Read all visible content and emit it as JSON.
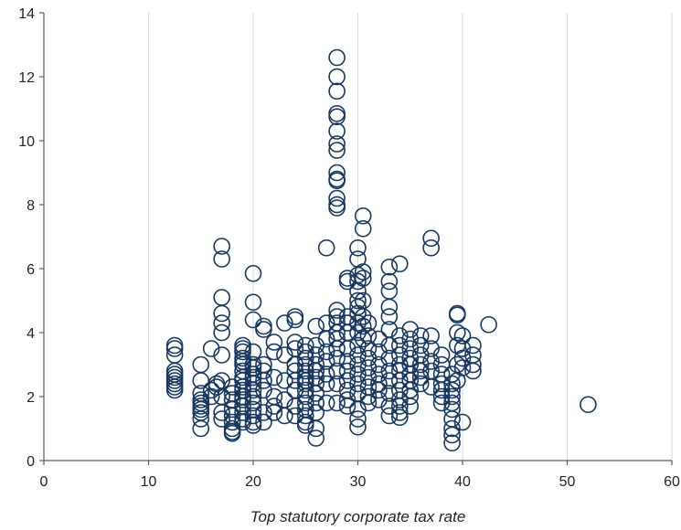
{
  "chart_data": {
    "type": "scatter",
    "title": "",
    "xlabel": "Top statutory corporate tax rate",
    "ylabel": "",
    "xlim": [
      0,
      60
    ],
    "ylim": [
      0,
      14
    ],
    "xticks": [
      0,
      10,
      20,
      30,
      40,
      50,
      60
    ],
    "yticks": [
      0,
      2,
      4,
      6,
      8,
      10,
      12,
      14
    ],
    "grid": {
      "vertical": true,
      "horizontal": false
    },
    "legend": "none",
    "colors": {
      "marker": "#17375e",
      "grid": "#d9d9d9",
      "axis": "#595959"
    },
    "marker": "open-circle",
    "x": [
      12.5,
      12.5,
      12.5,
      12.5,
      12.5,
      12.5,
      12.5,
      12.5,
      12.5,
      12.5,
      15,
      15,
      15,
      15,
      15,
      15,
      15,
      15,
      15,
      15,
      16,
      16,
      16,
      16.5,
      16.5,
      17,
      17,
      17,
      17,
      17,
      17,
      17,
      17,
      17,
      17,
      17,
      18,
      18,
      18,
      18,
      18,
      18,
      18,
      18,
      18,
      19,
      19,
      19,
      19,
      19,
      19,
      19,
      19,
      19,
      19,
      19,
      19,
      19,
      19,
      19,
      19,
      19,
      20,
      20,
      20,
      20,
      20,
      20,
      20,
      20,
      20,
      20,
      20,
      20,
      20,
      20,
      20,
      20,
      21,
      21,
      21,
      21,
      21,
      21,
      21,
      21,
      22,
      22,
      22,
      22,
      22,
      22,
      23,
      23,
      23,
      23,
      23,
      24,
      24,
      24,
      24,
      24,
      24,
      24,
      24,
      24,
      24,
      25,
      25,
      25,
      25,
      25,
      25,
      25,
      25,
      25,
      25,
      25,
      25,
      25,
      25,
      25,
      26,
      26,
      26,
      26,
      26,
      26,
      26,
      26,
      26,
      26,
      26,
      26,
      27,
      27,
      27,
      27,
      27,
      27,
      27,
      27,
      28,
      28,
      28,
      28,
      28,
      28,
      28,
      28,
      28,
      28,
      28,
      28,
      28,
      28,
      28,
      28,
      28,
      28,
      28,
      28,
      28,
      28,
      28,
      28,
      29,
      29,
      29,
      29,
      29,
      29,
      29,
      29,
      29,
      29,
      29,
      29,
      30,
      30,
      30,
      30,
      30,
      30,
      30,
      30,
      30,
      30,
      30,
      30,
      30,
      30,
      30,
      30,
      30,
      30,
      30,
      30.5,
      30.5,
      30.5,
      30.5,
      30.5,
      30.5,
      30.5,
      30.5,
      31,
      31,
      31,
      31,
      31,
      31,
      31,
      31,
      31,
      32,
      32,
      32,
      32,
      32,
      32,
      32,
      33,
      33,
      33,
      33,
      33,
      33,
      33,
      33,
      33,
      33,
      33,
      33,
      33,
      34,
      34,
      34,
      34,
      34,
      34,
      34,
      34,
      34,
      34,
      34,
      34,
      35,
      35,
      35,
      35,
      35,
      35,
      35,
      35,
      35,
      35,
      36,
      36,
      36,
      36,
      36,
      36,
      36,
      37,
      37,
      37,
      37,
      37,
      37,
      37,
      38,
      38,
      38,
      38,
      38,
      38,
      38,
      39,
      39,
      39,
      39,
      39,
      39,
      39,
      39,
      39,
      39,
      39.5,
      39.5,
      39.5,
      39.5,
      39.5,
      39.5,
      40,
      40,
      40,
      40,
      40,
      41,
      41,
      41,
      41,
      42.5,
      52
    ],
    "y": [
      3.6,
      3.5,
      3.3,
      2.8,
      2.7,
      2.6,
      2.5,
      2.4,
      2.3,
      2.2,
      3.0,
      2.5,
      2.1,
      1.9,
      1.8,
      1.7,
      1.6,
      1.5,
      1.3,
      1.0,
      3.5,
      2.2,
      2.0,
      2.4,
      2.3,
      6.7,
      6.3,
      5.1,
      4.6,
      4.3,
      4.0,
      3.3,
      2.5,
      2.0,
      1.5,
      1.3,
      2.3,
      2.1,
      1.9,
      1.6,
      1.4,
      1.2,
      1.0,
      0.9,
      0.85,
      3.6,
      3.5,
      3.4,
      3.2,
      3.1,
      3.0,
      2.8,
      2.6,
      2.5,
      2.3,
      2.2,
      2.0,
      1.9,
      1.7,
      1.5,
      1.3,
      1.2,
      5.85,
      4.95,
      4.4,
      3.4,
      3.0,
      2.9,
      2.7,
      2.6,
      2.4,
      2.2,
      2.0,
      1.8,
      1.6,
      1.4,
      1.2,
      1.1,
      4.2,
      4.1,
      3.0,
      2.8,
      2.5,
      2.2,
      1.5,
      1.2,
      3.7,
      3.4,
      2.6,
      2.0,
      1.7,
      1.5,
      4.3,
      3.3,
      2.5,
      1.9,
      1.4,
      4.5,
      4.4,
      3.7,
      3.5,
      3.0,
      2.8,
      2.5,
      2.2,
      1.7,
      1.4,
      3.6,
      3.4,
      3.2,
      3.0,
      2.8,
      2.6,
      2.5,
      2.4,
      2.2,
      2.0,
      1.8,
      1.6,
      1.4,
      1.2,
      1.1,
      4.2,
      3.6,
      3.3,
      3.0,
      2.8,
      2.6,
      2.4,
      2.1,
      1.8,
      1.5,
      1.0,
      0.7,
      6.65,
      4.3,
      3.8,
      3.4,
      3.1,
      2.7,
      2.4,
      1.8,
      12.6,
      12.0,
      11.55,
      10.85,
      10.75,
      10.3,
      9.9,
      9.7,
      9.0,
      8.8,
      8.75,
      8.2,
      8.0,
      7.9,
      4.7,
      4.5,
      4.3,
      4.0,
      3.8,
      3.5,
      3.2,
      2.8,
      2.4,
      1.8,
      5.7,
      5.6,
      4.5,
      4.3,
      4.0,
      3.5,
      3.1,
      2.8,
      2.5,
      2.2,
      1.9,
      1.7,
      6.65,
      6.3,
      5.8,
      5.6,
      5.3,
      5.0,
      4.8,
      4.6,
      4.3,
      4.0,
      3.6,
      3.3,
      3.0,
      2.7,
      2.4,
      2.1,
      1.6,
      1.3,
      1.05,
      7.65,
      7.25,
      5.9,
      5.7,
      5.0,
      4.5,
      4.2,
      3.8,
      4.3,
      3.9,
      3.5,
      3.2,
      2.9,
      2.6,
      2.3,
      2.0,
      1.8,
      3.8,
      3.4,
      3.0,
      2.7,
      2.4,
      2.2,
      1.9,
      6.05,
      5.6,
      5.3,
      4.8,
      4.5,
      4.1,
      3.6,
      3.2,
      2.8,
      2.5,
      2.1,
      1.7,
      1.4,
      6.15,
      3.9,
      3.6,
      3.3,
      3.0,
      2.8,
      2.5,
      2.2,
      1.9,
      1.7,
      1.5,
      1.35,
      4.1,
      3.8,
      3.5,
      3.2,
      3.0,
      2.7,
      2.5,
      2.2,
      2.0,
      1.7,
      3.9,
      3.6,
      3.3,
      3.0,
      2.8,
      2.6,
      2.4,
      6.95,
      6.65,
      3.9,
      3.5,
      3.1,
      2.8,
      2.3,
      3.3,
      3.0,
      2.7,
      2.4,
      2.2,
      2.0,
      1.8,
      2.7,
      2.4,
      2.2,
      2.0,
      1.8,
      1.6,
      1.3,
      1.0,
      0.8,
      0.55,
      4.6,
      4.55,
      4.0,
      3.6,
      3.0,
      2.5,
      3.9,
      3.5,
      3.2,
      2.9,
      1.2,
      3.6,
      3.3,
      3.0,
      2.8,
      4.25,
      1.75
    ]
  }
}
